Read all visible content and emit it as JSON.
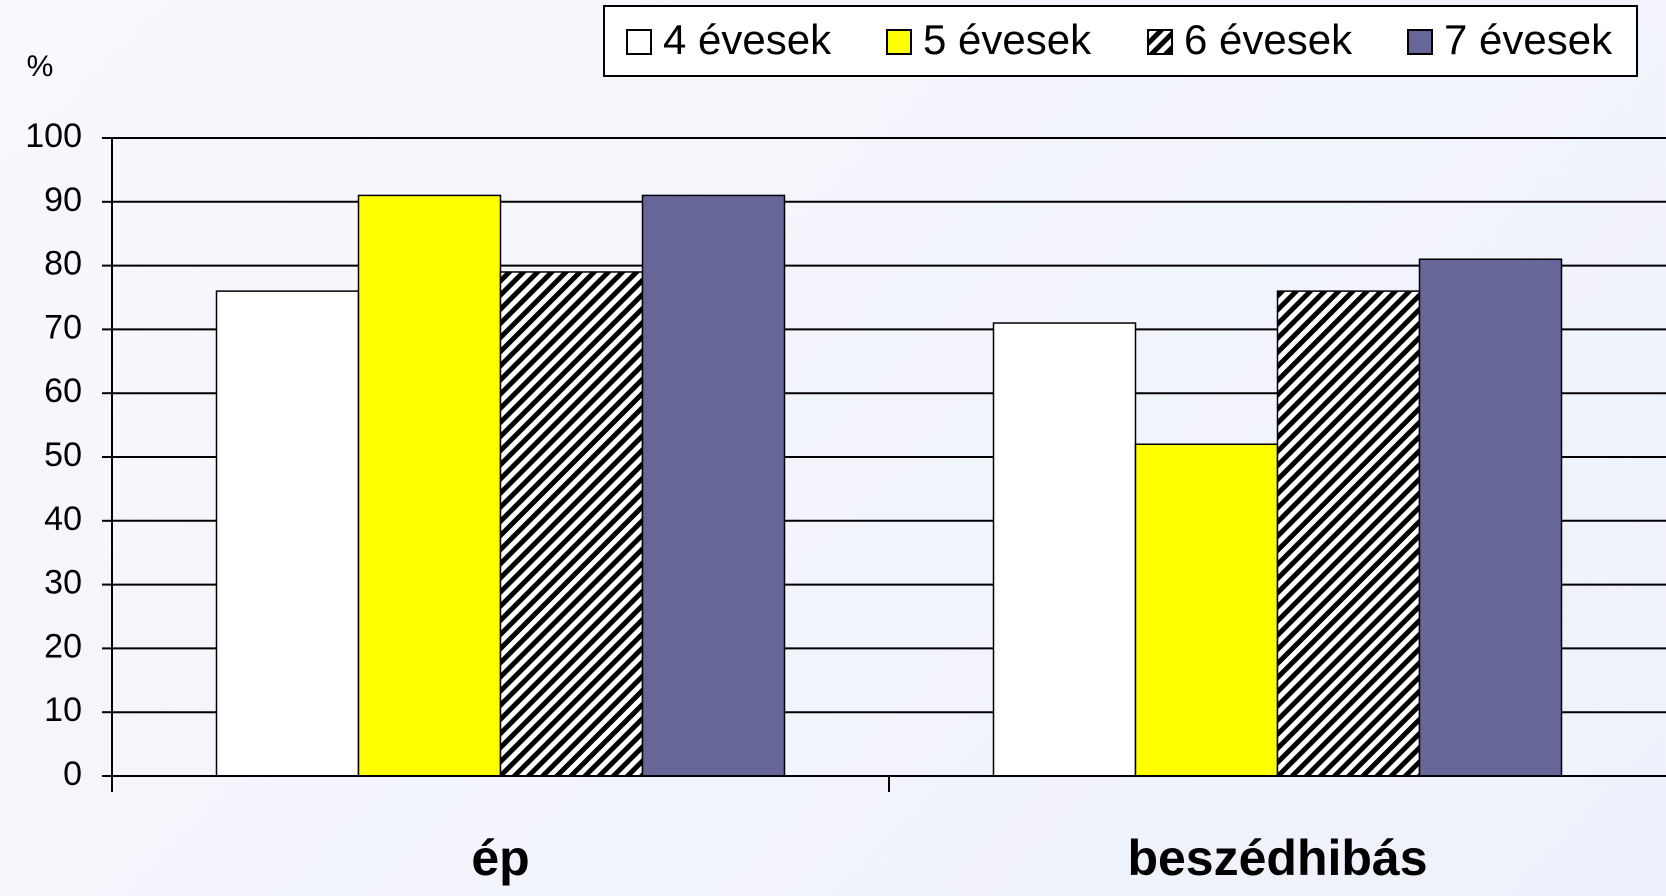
{
  "chart_data": {
    "type": "bar",
    "y_label": "%",
    "categories": [
      "ép",
      "beszédhibás"
    ],
    "series": [
      {
        "name": "4 évesek",
        "color": "#ffffff",
        "values": [
          76,
          71
        ]
      },
      {
        "name": "5 évesek",
        "color": "#ffff00",
        "values": [
          91,
          52
        ]
      },
      {
        "name": "6 évesek",
        "color": "#ffffff",
        "pattern": "hatch",
        "values": [
          79,
          76
        ]
      },
      {
        "name": "7 évesek",
        "color": "#666699",
        "values": [
          91,
          81
        ]
      }
    ],
    "ylim": [
      0,
      100
    ],
    "yticks": [
      0,
      10,
      20,
      30,
      40,
      50,
      60,
      70,
      80,
      90,
      100
    ],
    "grid": true,
    "legend": "top-right"
  }
}
